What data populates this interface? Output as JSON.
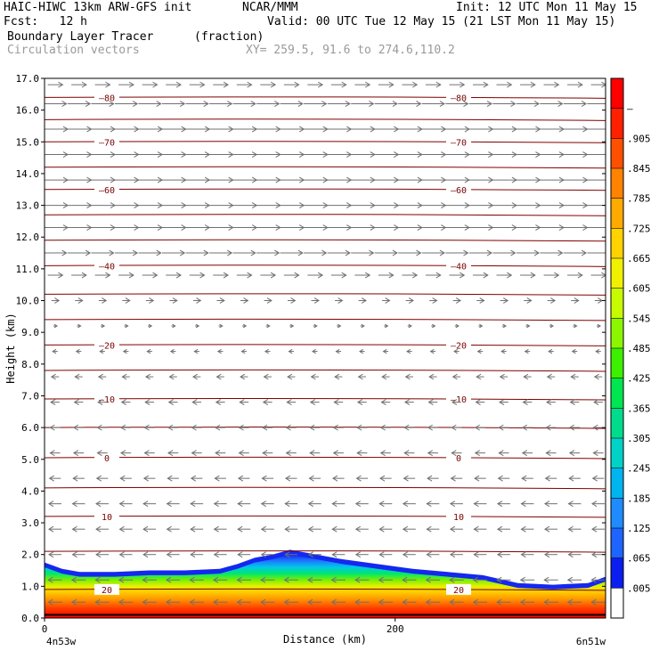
{
  "header": {
    "model": "HAIC-HIWC 13km ARW-GFS init",
    "org": "NCAR/MMM",
    "init": "Init: 12 UTC Mon 11 May 15",
    "fcst": "Fcst:   12 h",
    "valid": "Valid: 00 UTC Tue 12 May 15 (21 LST Mon 11 May 15)",
    "field": "Boundary Layer Tracer",
    "units": "(fraction)",
    "vectors": "Circulation vectors",
    "xy": "XY= 259.5, 91.6 to 274.6,110.2"
  },
  "chart_data": {
    "type": "heatmap",
    "description_field": "Boundary Layer Tracer cross-section with temperature contours and circulation vectors",
    "ylabel": "Height (km)",
    "xlabel": "Distance (km)",
    "ylim": [
      0.0,
      17.0
    ],
    "xlim": [
      0,
      320
    ],
    "y_ticks": [
      "0.0",
      "1.0",
      "2.0",
      "3.0",
      "4.0",
      "5.0",
      "6.0",
      "7.0",
      "8.0",
      "9.0",
      "10.0",
      "11.0",
      "12.0",
      "13.0",
      "14.0",
      "15.0",
      "16.0",
      "17.0"
    ],
    "x_ticks": [
      {
        "value": 0,
        "label": "0"
      },
      {
        "value": 200,
        "label": "200"
      }
    ],
    "x_endpoints": {
      "left": "4n53w",
      "right": "6n51w"
    },
    "colorbar": {
      "labels": [
        ".005",
        ".065",
        ".125",
        ".185",
        ".245",
        ".305",
        ".365",
        ".425",
        ".485",
        ".545",
        ".605",
        ".665",
        ".725",
        ".785",
        ".845",
        ".905",
        "–"
      ],
      "colors": [
        "#ffffff",
        "#0a1ef0",
        "#1e64ff",
        "#1e8cff",
        "#00b4f0",
        "#00d2c8",
        "#00dc8c",
        "#00e650",
        "#3cf000",
        "#8cf500",
        "#c8fa00",
        "#f0f000",
        "#ffd200",
        "#ffaa00",
        "#ff8200",
        "#ff5000",
        "#ff2000",
        "#ff0000"
      ]
    },
    "tracer_boundary": {
      "x": [
        0,
        10,
        20,
        40,
        60,
        80,
        100,
        110,
        120,
        130,
        140,
        150,
        170,
        190,
        210,
        230,
        250,
        270,
        290,
        310,
        320
      ],
      "y": [
        1.75,
        1.55,
        1.45,
        1.45,
        1.5,
        1.5,
        1.55,
        1.7,
        1.9,
        2.0,
        2.15,
        2.05,
        1.85,
        1.7,
        1.55,
        1.45,
        1.35,
        1.1,
        1.05,
        1.1,
        1.3
      ]
    },
    "temperature_contours": [
      {
        "label": "20",
        "height": 0.9
      },
      {
        "label": "10",
        "height": 3.2
      },
      {
        "label": "0",
        "height": 5.05
      },
      {
        "label": "-10",
        "height": 6.9
      },
      {
        "label": "-20",
        "height": 8.6
      },
      {
        "label": "-40",
        "height": 11.1
      },
      {
        "label": "-60",
        "height": 13.5
      },
      {
        "label": "-70",
        "height": 15.0
      },
      {
        "label": "-80",
        "height": 16.4
      }
    ],
    "contour_levels_km": [
      0.9,
      2.1,
      3.2,
      4.1,
      5.05,
      6.0,
      6.9,
      7.8,
      8.6,
      9.4,
      10.2,
      11.1,
      11.9,
      12.7,
      13.5,
      14.2,
      15.0,
      15.7,
      16.4
    ],
    "wind_profile": [
      {
        "height": 16.8,
        "u": 0.6
      },
      {
        "height": 16.2,
        "u": 0.9
      },
      {
        "height": 15.4,
        "u": 1.0
      },
      {
        "height": 14.6,
        "u": 1.0
      },
      {
        "height": 13.8,
        "u": 1.0
      },
      {
        "height": 13.0,
        "u": 1.0
      },
      {
        "height": 12.3,
        "u": 1.0
      },
      {
        "height": 11.5,
        "u": 0.9
      },
      {
        "height": 10.8,
        "u": 0.6
      },
      {
        "height": 10.0,
        "u": 0.3
      },
      {
        "height": 9.2,
        "u": 0.15
      },
      {
        "height": 8.4,
        "u": -0.2
      },
      {
        "height": 7.6,
        "u": -0.3
      },
      {
        "height": 6.8,
        "u": -0.35
      },
      {
        "height": 6.0,
        "u": -0.4
      },
      {
        "height": 5.2,
        "u": -0.4
      },
      {
        "height": 4.4,
        "u": -0.45
      },
      {
        "height": 3.6,
        "u": -0.5
      },
      {
        "height": 2.8,
        "u": -0.5
      },
      {
        "height": 2.0,
        "u": -0.5
      },
      {
        "height": 1.2,
        "u": -0.55
      },
      {
        "height": 0.5,
        "u": -0.55
      }
    ]
  }
}
